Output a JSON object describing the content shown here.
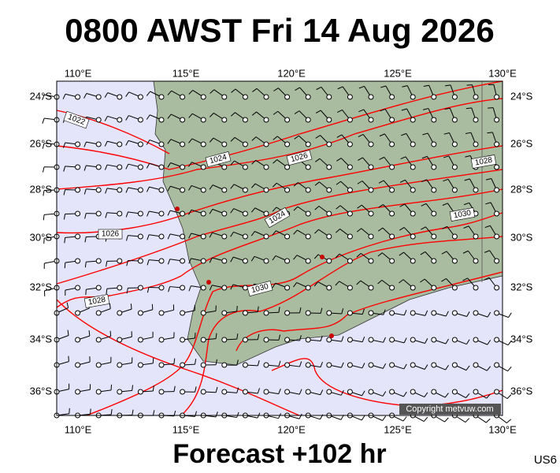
{
  "title": "0800 AWST Fri 14 Aug 2026",
  "footer": "Forecast +102 hr",
  "corner_code": "US6",
  "copyright": "Copyright metvuw.com",
  "lon_labels": [
    "110°E",
    "115°E",
    "120°E",
    "125°E",
    "130°E"
  ],
  "lat_labels": [
    "24°S",
    "26°S",
    "28°S",
    "30°S",
    "32°S",
    "34°S",
    "36°S"
  ],
  "isobar_labels": [
    "1022",
    "1024",
    "1026",
    "1026",
    "1028",
    "1024",
    "1030",
    "1030",
    "1028"
  ]
}
